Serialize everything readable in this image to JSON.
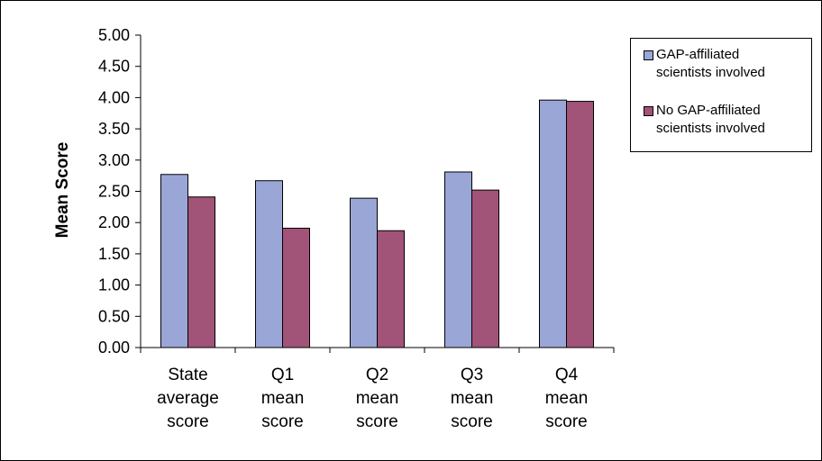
{
  "chart_data": {
    "type": "bar",
    "title": "",
    "xlabel": "",
    "ylabel": "Mean Score",
    "ylim": [
      0,
      5
    ],
    "yticks": [
      "0.00",
      "0.50",
      "1.00",
      "1.50",
      "2.00",
      "2.50",
      "3.00",
      "3.50",
      "4.00",
      "4.50",
      "5.00"
    ],
    "categories": [
      [
        "State",
        "average",
        "score"
      ],
      [
        "Q1",
        "mean",
        "score"
      ],
      [
        "Q2",
        "mean",
        "score"
      ],
      [
        "Q3",
        "mean",
        "score"
      ],
      [
        "Q4",
        "mean",
        "score"
      ]
    ],
    "series": [
      {
        "name": "GAP-affiliated scientists involved",
        "name_lines": [
          "GAP-affiliated",
          "scientists involved"
        ],
        "color": "#9AA6D6",
        "values": [
          2.77,
          2.67,
          2.39,
          2.81,
          3.96
        ]
      },
      {
        "name": "No GAP-affiliated scientists involved",
        "name_lines": [
          "No GAP-affiliated",
          "scientists involved"
        ],
        "color": "#A25378",
        "values": [
          2.41,
          1.91,
          1.87,
          2.52,
          3.94
        ]
      }
    ],
    "grid": false,
    "legend_position": "right"
  }
}
